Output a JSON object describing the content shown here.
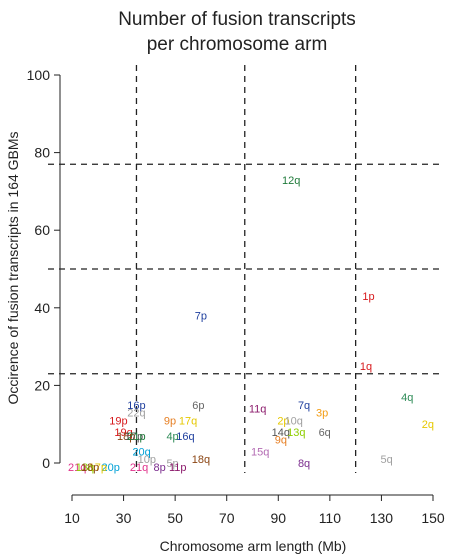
{
  "chart_data": {
    "type": "scatter",
    "title": [
      "Number of fusion transcripts",
      "per chromosome arm"
    ],
    "xlabel": "Chromosome arm length (Mb)",
    "ylabel": "Occirence of fusion transcripts in 164 GBMs",
    "xlim": [
      10,
      150
    ],
    "ylim": [
      0,
      100
    ],
    "xticks": [
      "10",
      "30",
      "50",
      "70",
      "90",
      "110",
      "130",
      "150"
    ],
    "yticks": [
      "0",
      "20",
      "40",
      "60",
      "80",
      "100"
    ],
    "vlines": [
      35,
      77,
      120
    ],
    "hlines": [
      23,
      50,
      77
    ],
    "points": [
      {
        "label": "12q",
        "x": 95,
        "y": 73,
        "color": "#1f7a3a"
      },
      {
        "label": "7p",
        "x": 60,
        "y": 38,
        "color": "#1f3f9e"
      },
      {
        "label": "1p",
        "x": 125,
        "y": 43,
        "color": "#d7191c"
      },
      {
        "label": "1q",
        "x": 124,
        "y": 25,
        "color": "#d7191c"
      },
      {
        "label": "4q",
        "x": 140,
        "y": 17,
        "color": "#2e8b57"
      },
      {
        "label": "2q",
        "x": 148,
        "y": 10,
        "color": "#e6c800"
      },
      {
        "label": "5q",
        "x": 132,
        "y": 1,
        "color": "#a0a0a0"
      },
      {
        "label": "7q",
        "x": 100,
        "y": 15,
        "color": "#1f3f9e"
      },
      {
        "label": "3p",
        "x": 107,
        "y": 13,
        "color": "#f39c12"
      },
      {
        "label": "11q",
        "x": 82,
        "y": 14,
        "color": "#8b1a6b"
      },
      {
        "label": "2p",
        "x": 92,
        "y": 11,
        "color": "#e6c800"
      },
      {
        "label": "10q",
        "x": 96,
        "y": 11,
        "color": "#a0a0a0"
      },
      {
        "label": "14q",
        "x": 91,
        "y": 8,
        "color": "#555555"
      },
      {
        "label": "13q",
        "x": 97,
        "y": 8,
        "color": "#8fce00"
      },
      {
        "label": "6q",
        "x": 108,
        "y": 8,
        "color": "#666666"
      },
      {
        "label": "9q",
        "x": 91,
        "y": 6,
        "color": "#e67e22"
      },
      {
        "label": "15q",
        "x": 83,
        "y": 3,
        "color": "#b36bb3"
      },
      {
        "label": "8q",
        "x": 100,
        "y": 0,
        "color": "#7b2d8e"
      },
      {
        "label": "16p",
        "x": 35,
        "y": 15,
        "color": "#1f3f9e"
      },
      {
        "label": "6p",
        "x": 59,
        "y": 15,
        "color": "#666666"
      },
      {
        "label": "22q",
        "x": 35,
        "y": 13,
        "color": "#a0a0a0"
      },
      {
        "label": "19p",
        "x": 28,
        "y": 11,
        "color": "#d7191c"
      },
      {
        "label": "9p",
        "x": 48,
        "y": 11,
        "color": "#e67e22"
      },
      {
        "label": "17q",
        "x": 55,
        "y": 11,
        "color": "#e6c800"
      },
      {
        "label": "19q",
        "x": 30,
        "y": 8,
        "color": "#d7191c"
      },
      {
        "label": "18p",
        "x": 31,
        "y": 7,
        "color": "#8b4513"
      },
      {
        "label": "17p",
        "x": 34,
        "y": 7,
        "color": "#555555"
      },
      {
        "label": "21p",
        "x": 35,
        "y": 7,
        "color": "#1f7a3a"
      },
      {
        "label": "4p",
        "x": 49,
        "y": 7,
        "color": "#2e8b57"
      },
      {
        "label": "16q",
        "x": 54,
        "y": 7,
        "color": "#1f3f9e"
      },
      {
        "label": "20q",
        "x": 37,
        "y": 3,
        "color": "#00a0d6"
      },
      {
        "label": "10p",
        "x": 39,
        "y": 1,
        "color": "#a0a0a0"
      },
      {
        "label": "5p",
        "x": 49,
        "y": 0,
        "color": "#a0a0a0"
      },
      {
        "label": "18q",
        "x": 60,
        "y": 1,
        "color": "#8b4513"
      },
      {
        "label": "21q",
        "x": 36,
        "y": -1,
        "color": "#e0308a"
      },
      {
        "label": "8p",
        "x": 44,
        "y": -1,
        "color": "#7b2d8e"
      },
      {
        "label": "11p",
        "x": 51,
        "y": -1,
        "color": "#8b1a6b"
      },
      {
        "label": "20p",
        "x": 25,
        "y": -1,
        "color": "#00a0d6"
      },
      {
        "label": "17p",
        "x": 20,
        "y": -1,
        "color": "#e6c800"
      },
      {
        "label": "21q",
        "x": 12,
        "y": -1,
        "color": "#e0308a"
      },
      {
        "label": "13q",
        "x": 15,
        "y": -1,
        "color": "#8fce00"
      },
      {
        "label": "18p",
        "x": 17,
        "y": -1,
        "color": "#8b4513"
      }
    ]
  }
}
